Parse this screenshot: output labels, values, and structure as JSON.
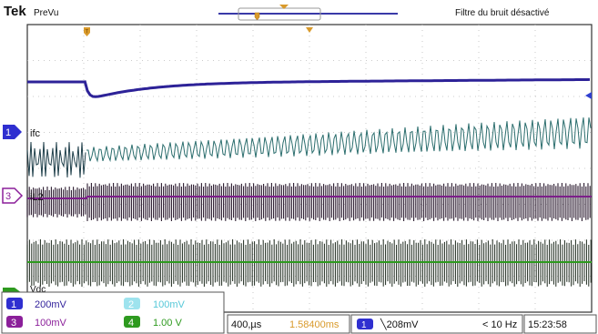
{
  "header": {
    "brand": "Tek",
    "mode": "PreVu",
    "status": "Filtre du bruit désactivé"
  },
  "channels": {
    "ch1": {
      "number": "1",
      "scale": "200mV",
      "label": "ifc",
      "color": "#2f1f9a"
    },
    "ch2": {
      "number": "2",
      "scale": "100mV",
      "color": "#56c8d8"
    },
    "ch3": {
      "number": "3",
      "scale": "100mV",
      "label": "iL2",
      "color": "#8b1f9a"
    },
    "ch4": {
      "number": "4",
      "scale": "1.00 V",
      "label": "Vdc",
      "color": "#2e9a1f"
    }
  },
  "timebase": {
    "scale": "400,µs",
    "position": "1.58400ms"
  },
  "trigger": {
    "source": "1",
    "slope_level": "╲208mV",
    "frequency": "< 10 Hz"
  },
  "clock": "15:23:58",
  "colors": {
    "grid": "#bbbbbb",
    "frame": "#333333",
    "marker": "#d99a2b",
    "ch1_trace": "#2d2298",
    "ch2_trace": "#2c6e6e",
    "ch3_trace": "#7d1f8a",
    "ch4_trace": "#2e9a1f"
  }
}
